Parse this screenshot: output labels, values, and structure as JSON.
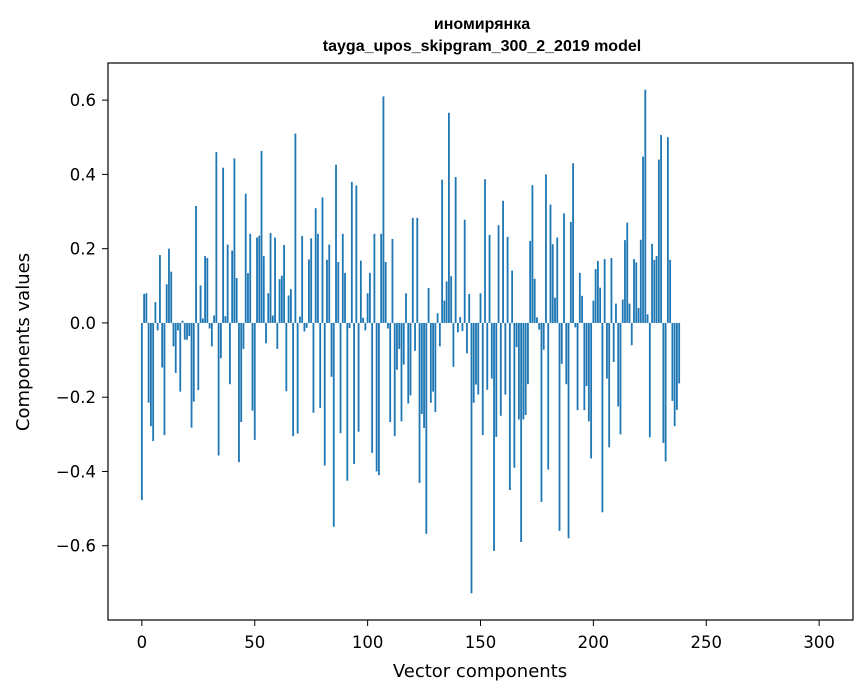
{
  "chart_data": {
    "type": "bar",
    "title": "иномирянка",
    "subtitle": "tayga_upos_skipgram_300_2_2019 model",
    "xlabel": "Vector components",
    "ylabel": "Components values",
    "xlim": [
      -15,
      315
    ],
    "ylim": [
      -0.8,
      0.7
    ],
    "xticks": [
      0,
      50,
      100,
      150,
      200,
      250,
      300
    ],
    "yticks": [
      -0.6,
      -0.4,
      -0.2,
      0.0,
      0.2,
      0.4,
      0.6
    ],
    "xtick_labels": [
      "0",
      "50",
      "100",
      "150",
      "200",
      "250",
      "300"
    ],
    "ytick_labels": [
      "−0.6",
      "−0.4",
      "−0.2",
      "0.0",
      "0.2",
      "0.4",
      "0.6"
    ],
    "grid": false,
    "bar_color": "#1f77b4",
    "values": [
      -0.477,
      0.078,
      0.08,
      -0.215,
      -0.278,
      -0.318,
      0.056,
      -0.02,
      0.183,
      -0.12,
      -0.302,
      0.104,
      0.2,
      0.138,
      -0.063,
      -0.135,
      -0.02,
      -0.185,
      0.006,
      -0.045,
      -0.045,
      -0.035,
      -0.282,
      -0.212,
      0.315,
      -0.181,
      0.101,
      0.012,
      0.18,
      0.175,
      -0.015,
      -0.063,
      0.02,
      0.46,
      -0.357,
      -0.095,
      0.418,
      0.018,
      0.211,
      -0.165,
      0.195,
      0.443,
      0.121,
      -0.375,
      -0.267,
      -0.07,
      0.348,
      0.134,
      0.24,
      -0.236,
      -0.315,
      0.23,
      0.235,
      0.463,
      0.18,
      -0.055,
      0.08,
      0.242,
      0.02,
      0.23,
      -0.07,
      0.118,
      0.127,
      0.21,
      -0.184,
      0.074,
      0.091,
      -0.305,
      0.51,
      -0.298,
      0.017,
      0.234,
      -0.023,
      -0.013,
      0.171,
      0.228,
      -0.242,
      0.309,
      0.24,
      -0.229,
      0.338,
      -0.384,
      0.17,
      0.211,
      -0.145,
      -0.549,
      0.426,
      0.164,
      -0.297,
      0.24,
      0.135,
      -0.425,
      -0.014,
      0.38,
      -0.38,
      0.37,
      -0.293,
      0.168,
      0.014,
      -0.02,
      0.08,
      0.135,
      -0.35,
      0.24,
      -0.4,
      -0.41,
      0.24,
      0.61,
      0.164,
      -0.015,
      -0.267,
      0.226,
      -0.305,
      -0.126,
      -0.07,
      -0.265,
      -0.112,
      0.08,
      -0.217,
      -0.195,
      0.283,
      -0.075,
      0.283,
      -0.431,
      -0.245,
      -0.283,
      -0.568,
      0.094,
      -0.215,
      -0.185,
      -0.24,
      0.026,
      -0.063,
      0.386,
      0.06,
      0.112,
      0.566,
      0.126,
      -0.118,
      0.393,
      -0.025,
      0.016,
      -0.022,
      0.278,
      -0.082,
      0.078,
      -0.728,
      -0.215,
      -0.166,
      -0.193,
      0.08,
      -0.302,
      0.387,
      -0.18,
      0.237,
      -0.15,
      -0.614,
      -0.307,
      0.263,
      -0.25,
      0.329,
      -0.193,
      0.232,
      -0.45,
      0.141,
      -0.39,
      -0.065,
      -0.26,
      -0.59,
      -0.26,
      -0.248,
      -0.165,
      0.221,
      0.371,
      0.119,
      0.015,
      -0.018,
      -0.482,
      -0.072,
      0.4,
      -0.395,
      0.319,
      0.212,
      0.068,
      0.23,
      -0.56,
      -0.11,
      0.295,
      -0.165,
      -0.58,
      0.272,
      0.43,
      -0.012,
      -0.235,
      0.135,
      0.073,
      -0.235,
      -0.17,
      -0.265,
      -0.365,
      0.06,
      0.145,
      0.167,
      0.095,
      -0.51,
      0.172,
      -0.15,
      -0.335,
      0.175,
      -0.105,
      0.052,
      -0.225,
      -0.3,
      0.063,
      0.223,
      0.27,
      0.052,
      -0.06,
      0.172,
      0.163,
      0.04,
      0.224,
      0.448,
      0.628,
      0.023,
      -0.308,
      0.213,
      0.17,
      0.18,
      0.44,
      0.506,
      -0.323,
      -0.373,
      0.5,
      0.17,
      -0.21,
      -0.278,
      -0.234,
      -0.163
    ]
  }
}
